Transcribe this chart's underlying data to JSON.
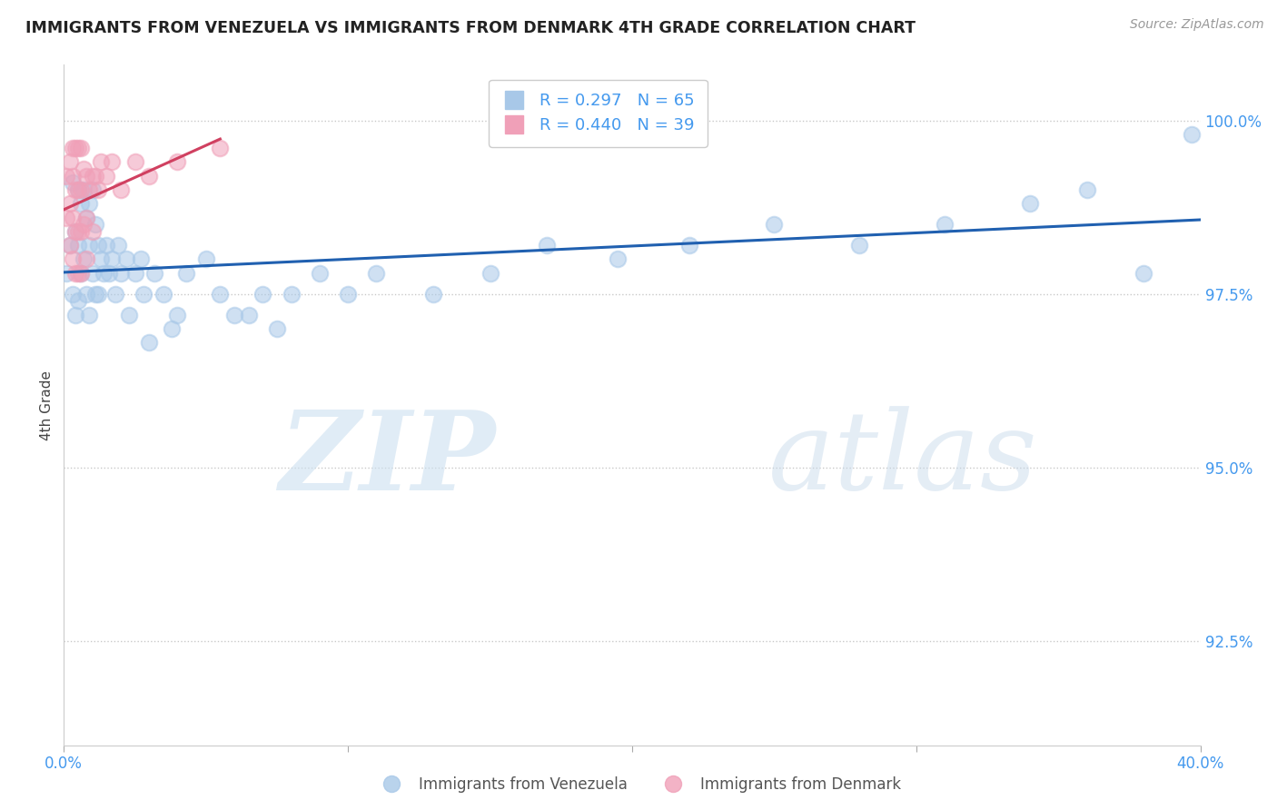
{
  "title": "IMMIGRANTS FROM VENEZUELA VS IMMIGRANTS FROM DENMARK 4TH GRADE CORRELATION CHART",
  "source": "Source: ZipAtlas.com",
  "ylabel": "4th Grade",
  "xlim": [
    0.0,
    0.4
  ],
  "ylim": [
    0.91,
    1.008
  ],
  "yticks": [
    0.925,
    0.95,
    0.975,
    1.0
  ],
  "xticks": [
    0.0,
    0.1,
    0.2,
    0.3,
    0.4
  ],
  "legend_R_ven": "R = 0.297",
  "legend_N_ven": "N = 65",
  "legend_R_den": "R = 0.440",
  "legend_N_den": "N = 39",
  "venezuela_color": "#a8c8e8",
  "denmark_color": "#f0a0b8",
  "venezuela_line_color": "#2060b0",
  "denmark_line_color": "#d04060",
  "ven_x": [
    0.001,
    0.002,
    0.003,
    0.003,
    0.004,
    0.004,
    0.005,
    0.005,
    0.005,
    0.006,
    0.006,
    0.007,
    0.007,
    0.008,
    0.008,
    0.009,
    0.009,
    0.009,
    0.01,
    0.01,
    0.011,
    0.011,
    0.012,
    0.012,
    0.013,
    0.014,
    0.015,
    0.016,
    0.017,
    0.018,
    0.019,
    0.02,
    0.022,
    0.023,
    0.025,
    0.027,
    0.028,
    0.03,
    0.032,
    0.035,
    0.038,
    0.04,
    0.043,
    0.05,
    0.055,
    0.06,
    0.065,
    0.07,
    0.075,
    0.08,
    0.09,
    0.1,
    0.11,
    0.13,
    0.15,
    0.17,
    0.195,
    0.22,
    0.25,
    0.28,
    0.31,
    0.34,
    0.36,
    0.38,
    0.397
  ],
  "ven_y": [
    0.978,
    0.982,
    0.991,
    0.975,
    0.984,
    0.972,
    0.99,
    0.982,
    0.974,
    0.988,
    0.978,
    0.99,
    0.98,
    0.986,
    0.975,
    0.988,
    0.982,
    0.972,
    0.99,
    0.978,
    0.985,
    0.975,
    0.982,
    0.975,
    0.98,
    0.978,
    0.982,
    0.978,
    0.98,
    0.975,
    0.982,
    0.978,
    0.98,
    0.972,
    0.978,
    0.98,
    0.975,
    0.968,
    0.978,
    0.975,
    0.97,
    0.972,
    0.978,
    0.98,
    0.975,
    0.972,
    0.972,
    0.975,
    0.97,
    0.975,
    0.978,
    0.975,
    0.978,
    0.975,
    0.978,
    0.982,
    0.98,
    0.982,
    0.985,
    0.982,
    0.985,
    0.988,
    0.99,
    0.978,
    0.998
  ],
  "den_x": [
    0.001,
    0.001,
    0.002,
    0.002,
    0.002,
    0.003,
    0.003,
    0.003,
    0.003,
    0.004,
    0.004,
    0.004,
    0.004,
    0.005,
    0.005,
    0.005,
    0.005,
    0.006,
    0.006,
    0.006,
    0.006,
    0.007,
    0.007,
    0.008,
    0.008,
    0.008,
    0.009,
    0.01,
    0.01,
    0.011,
    0.012,
    0.013,
    0.015,
    0.017,
    0.02,
    0.025,
    0.03,
    0.04,
    0.055
  ],
  "den_y": [
    0.992,
    0.986,
    0.994,
    0.988,
    0.982,
    0.996,
    0.992,
    0.986,
    0.98,
    0.996,
    0.99,
    0.984,
    0.978,
    0.996,
    0.99,
    0.984,
    0.978,
    0.996,
    0.99,
    0.984,
    0.978,
    0.993,
    0.985,
    0.992,
    0.986,
    0.98,
    0.99,
    0.992,
    0.984,
    0.992,
    0.99,
    0.994,
    0.992,
    0.994,
    0.99,
    0.994,
    0.992,
    0.994,
    0.996
  ],
  "ven_line_x": [
    0.0,
    0.4
  ],
  "ven_line_y": [
    0.9745,
    0.9915
  ],
  "den_line_x": [
    0.0,
    0.055
  ],
  "den_line_y": [
    0.9835,
    0.9965
  ]
}
